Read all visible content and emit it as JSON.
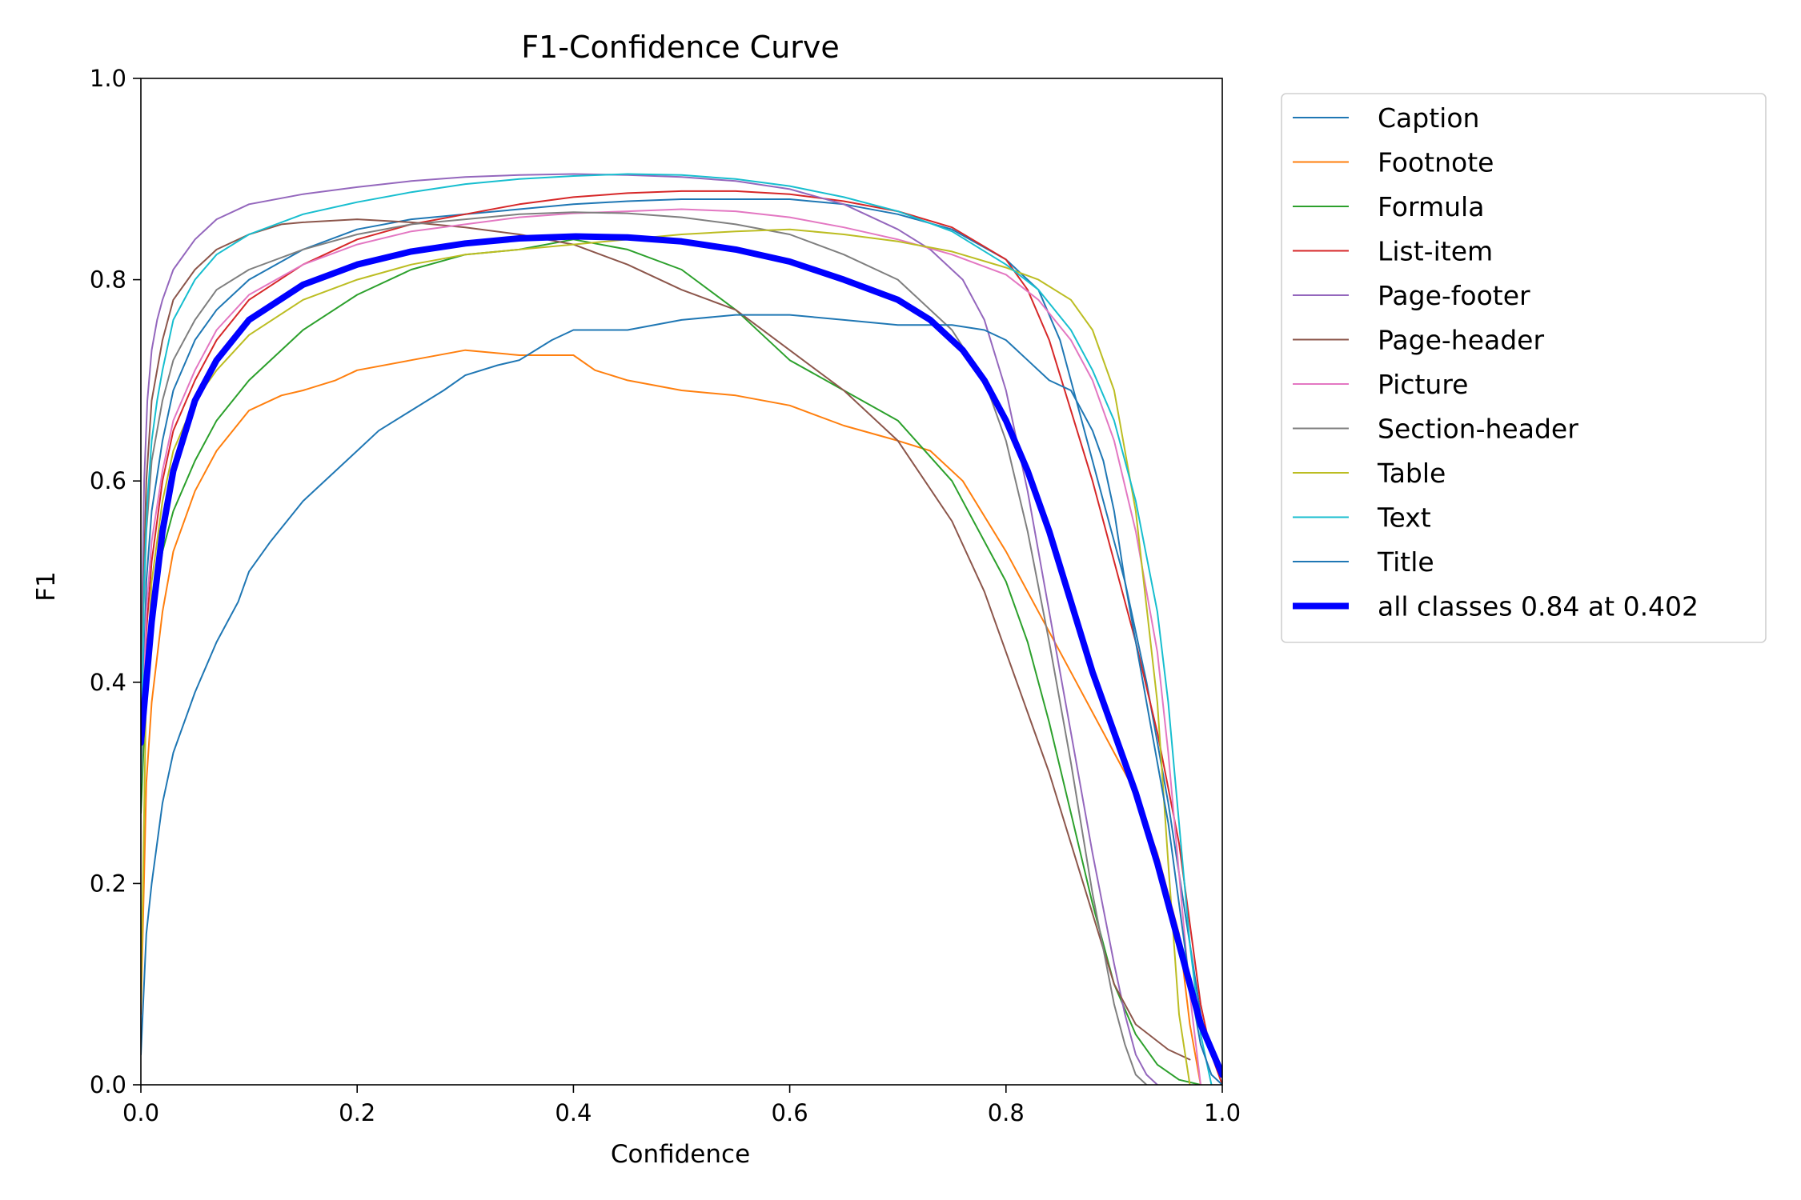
{
  "chart_data": {
    "type": "line",
    "title": "F1-Confidence Curve",
    "xlabel": "Confidence",
    "ylabel": "F1",
    "xlim": [
      0.0,
      1.0
    ],
    "ylim": [
      0.0,
      1.0
    ],
    "xticks": [
      "0.0",
      "0.2",
      "0.4",
      "0.6",
      "0.8",
      "1.0"
    ],
    "yticks": [
      "0.0",
      "0.2",
      "0.4",
      "0.6",
      "0.8",
      "1.0"
    ],
    "grid": false,
    "legend_position": "outside-right",
    "series": [
      {
        "name": "Caption",
        "color": "#1f77b4",
        "width": 2,
        "x": [
          0.0,
          0.005,
          0.01,
          0.02,
          0.03,
          0.05,
          0.07,
          0.1,
          0.15,
          0.2,
          0.25,
          0.3,
          0.35,
          0.4,
          0.45,
          0.5,
          0.55,
          0.6,
          0.65,
          0.7,
          0.75,
          0.8,
          0.83,
          0.85,
          0.87,
          0.89,
          0.91,
          0.93,
          0.95,
          0.97,
          0.98,
          0.99,
          1.0
        ],
        "y": [
          0.3,
          0.5,
          0.57,
          0.64,
          0.69,
          0.74,
          0.77,
          0.8,
          0.83,
          0.85,
          0.86,
          0.865,
          0.87,
          0.875,
          0.878,
          0.88,
          0.88,
          0.88,
          0.875,
          0.865,
          0.85,
          0.82,
          0.79,
          0.74,
          0.66,
          0.58,
          0.5,
          0.4,
          0.28,
          0.14,
          0.07,
          0.03,
          0.01
        ]
      },
      {
        "name": "Footnote",
        "color": "#ff7f0e",
        "width": 2,
        "x": [
          0.0,
          0.005,
          0.01,
          0.02,
          0.03,
          0.05,
          0.07,
          0.1,
          0.13,
          0.15,
          0.18,
          0.2,
          0.25,
          0.3,
          0.35,
          0.4,
          0.42,
          0.45,
          0.5,
          0.55,
          0.6,
          0.65,
          0.7,
          0.73,
          0.76,
          0.8,
          0.83,
          0.86,
          0.89,
          0.92,
          0.94,
          0.96,
          0.97,
          0.98
        ],
        "y": [
          0.07,
          0.3,
          0.38,
          0.47,
          0.53,
          0.59,
          0.63,
          0.67,
          0.685,
          0.69,
          0.7,
          0.71,
          0.72,
          0.73,
          0.725,
          0.725,
          0.71,
          0.7,
          0.69,
          0.685,
          0.675,
          0.655,
          0.64,
          0.63,
          0.6,
          0.53,
          0.47,
          0.41,
          0.35,
          0.29,
          0.23,
          0.15,
          0.06,
          0.0
        ]
      },
      {
        "name": "Formula",
        "color": "#2ca02c",
        "width": 2,
        "x": [
          0.0,
          0.005,
          0.01,
          0.02,
          0.03,
          0.05,
          0.07,
          0.1,
          0.15,
          0.2,
          0.25,
          0.3,
          0.35,
          0.4,
          0.45,
          0.5,
          0.55,
          0.6,
          0.65,
          0.7,
          0.75,
          0.8,
          0.82,
          0.84,
          0.86,
          0.88,
          0.9,
          0.92,
          0.94,
          0.96,
          0.98
        ],
        "y": [
          0.27,
          0.4,
          0.46,
          0.53,
          0.57,
          0.62,
          0.66,
          0.7,
          0.75,
          0.785,
          0.81,
          0.825,
          0.83,
          0.84,
          0.83,
          0.81,
          0.77,
          0.72,
          0.69,
          0.66,
          0.6,
          0.5,
          0.44,
          0.36,
          0.27,
          0.18,
          0.1,
          0.05,
          0.02,
          0.005,
          0.0
        ]
      },
      {
        "name": "List-item",
        "color": "#d62728",
        "width": 2,
        "x": [
          0.0,
          0.005,
          0.01,
          0.02,
          0.03,
          0.05,
          0.07,
          0.1,
          0.15,
          0.2,
          0.25,
          0.3,
          0.35,
          0.4,
          0.45,
          0.5,
          0.55,
          0.6,
          0.65,
          0.7,
          0.75,
          0.8,
          0.82,
          0.84,
          0.86,
          0.88,
          0.9,
          0.92,
          0.94,
          0.96,
          0.97,
          0.98,
          0.99,
          1.0
        ],
        "y": [
          0.3,
          0.45,
          0.52,
          0.6,
          0.65,
          0.7,
          0.74,
          0.78,
          0.815,
          0.84,
          0.855,
          0.865,
          0.875,
          0.882,
          0.886,
          0.888,
          0.888,
          0.885,
          0.878,
          0.868,
          0.852,
          0.82,
          0.79,
          0.74,
          0.67,
          0.6,
          0.52,
          0.44,
          0.35,
          0.24,
          0.16,
          0.08,
          0.03,
          0.0
        ]
      },
      {
        "name": "Page-footer",
        "color": "#9467bd",
        "width": 2,
        "x": [
          0.0,
          0.003,
          0.006,
          0.01,
          0.015,
          0.02,
          0.03,
          0.05,
          0.07,
          0.1,
          0.15,
          0.2,
          0.25,
          0.3,
          0.35,
          0.4,
          0.45,
          0.5,
          0.55,
          0.6,
          0.65,
          0.7,
          0.73,
          0.76,
          0.78,
          0.8,
          0.82,
          0.84,
          0.86,
          0.88,
          0.9,
          0.91,
          0.92,
          0.93,
          0.94
        ],
        "y": [
          0.4,
          0.6,
          0.68,
          0.73,
          0.76,
          0.78,
          0.81,
          0.84,
          0.86,
          0.875,
          0.885,
          0.892,
          0.898,
          0.902,
          0.904,
          0.905,
          0.904,
          0.902,
          0.898,
          0.89,
          0.875,
          0.85,
          0.83,
          0.8,
          0.76,
          0.69,
          0.59,
          0.47,
          0.35,
          0.23,
          0.12,
          0.07,
          0.03,
          0.01,
          0.0
        ]
      },
      {
        "name": "Page-header",
        "color": "#8c564b",
        "width": 2,
        "x": [
          0.0,
          0.005,
          0.01,
          0.02,
          0.03,
          0.05,
          0.07,
          0.1,
          0.13,
          0.15,
          0.2,
          0.25,
          0.3,
          0.35,
          0.4,
          0.45,
          0.5,
          0.55,
          0.6,
          0.65,
          0.7,
          0.75,
          0.78,
          0.8,
          0.82,
          0.84,
          0.86,
          0.88,
          0.9,
          0.92,
          0.95,
          0.97
        ],
        "y": [
          0.4,
          0.6,
          0.68,
          0.74,
          0.78,
          0.81,
          0.83,
          0.845,
          0.855,
          0.857,
          0.86,
          0.857,
          0.852,
          0.845,
          0.835,
          0.815,
          0.79,
          0.77,
          0.73,
          0.69,
          0.64,
          0.56,
          0.49,
          0.43,
          0.37,
          0.31,
          0.24,
          0.17,
          0.1,
          0.06,
          0.035,
          0.025
        ]
      },
      {
        "name": "Picture",
        "color": "#e377c2",
        "width": 2,
        "x": [
          0.0,
          0.005,
          0.01,
          0.02,
          0.03,
          0.05,
          0.07,
          0.1,
          0.15,
          0.2,
          0.25,
          0.3,
          0.35,
          0.4,
          0.45,
          0.5,
          0.55,
          0.6,
          0.65,
          0.7,
          0.75,
          0.8,
          0.83,
          0.86,
          0.88,
          0.9,
          0.92,
          0.94,
          0.95,
          0.96,
          0.97,
          0.98
        ],
        "y": [
          0.3,
          0.47,
          0.54,
          0.61,
          0.66,
          0.71,
          0.75,
          0.785,
          0.815,
          0.835,
          0.848,
          0.855,
          0.862,
          0.866,
          0.868,
          0.87,
          0.868,
          0.862,
          0.852,
          0.84,
          0.825,
          0.805,
          0.78,
          0.74,
          0.7,
          0.64,
          0.55,
          0.43,
          0.33,
          0.21,
          0.09,
          0.0
        ]
      },
      {
        "name": "Section-header",
        "color": "#7f7f7f",
        "width": 2,
        "x": [
          0.0,
          0.005,
          0.01,
          0.02,
          0.03,
          0.05,
          0.07,
          0.1,
          0.15,
          0.2,
          0.25,
          0.3,
          0.35,
          0.4,
          0.45,
          0.5,
          0.55,
          0.6,
          0.65,
          0.7,
          0.75,
          0.78,
          0.8,
          0.82,
          0.84,
          0.86,
          0.88,
          0.9,
          0.91,
          0.92,
          0.93
        ],
        "y": [
          0.4,
          0.55,
          0.62,
          0.68,
          0.72,
          0.76,
          0.79,
          0.81,
          0.83,
          0.845,
          0.855,
          0.86,
          0.865,
          0.867,
          0.866,
          0.862,
          0.855,
          0.845,
          0.825,
          0.8,
          0.75,
          0.7,
          0.64,
          0.55,
          0.44,
          0.32,
          0.19,
          0.08,
          0.04,
          0.01,
          0.0
        ]
      },
      {
        "name": "Table",
        "color": "#bcbd22",
        "width": 2,
        "x": [
          0.0,
          0.005,
          0.01,
          0.02,
          0.03,
          0.05,
          0.07,
          0.1,
          0.15,
          0.2,
          0.25,
          0.3,
          0.35,
          0.4,
          0.45,
          0.5,
          0.55,
          0.6,
          0.65,
          0.7,
          0.75,
          0.8,
          0.83,
          0.86,
          0.88,
          0.9,
          0.92,
          0.94,
          0.95,
          0.96,
          0.97
        ],
        "y": [
          0.08,
          0.4,
          0.5,
          0.58,
          0.63,
          0.68,
          0.71,
          0.745,
          0.78,
          0.8,
          0.815,
          0.825,
          0.83,
          0.835,
          0.84,
          0.845,
          0.848,
          0.85,
          0.845,
          0.838,
          0.828,
          0.812,
          0.8,
          0.78,
          0.75,
          0.69,
          0.57,
          0.38,
          0.22,
          0.07,
          0.0
        ]
      },
      {
        "name": "Text",
        "color": "#17becf",
        "width": 2,
        "x": [
          0.0,
          0.003,
          0.006,
          0.01,
          0.015,
          0.02,
          0.03,
          0.05,
          0.07,
          0.1,
          0.15,
          0.2,
          0.25,
          0.3,
          0.35,
          0.4,
          0.45,
          0.5,
          0.55,
          0.6,
          0.65,
          0.7,
          0.75,
          0.8,
          0.83,
          0.86,
          0.88,
          0.9,
          0.92,
          0.94,
          0.95,
          0.96,
          0.97,
          0.98,
          0.99
        ],
        "y": [
          0.3,
          0.5,
          0.58,
          0.64,
          0.68,
          0.71,
          0.76,
          0.8,
          0.825,
          0.845,
          0.865,
          0.877,
          0.887,
          0.895,
          0.9,
          0.903,
          0.905,
          0.904,
          0.9,
          0.893,
          0.882,
          0.868,
          0.848,
          0.815,
          0.79,
          0.75,
          0.71,
          0.66,
          0.58,
          0.47,
          0.38,
          0.26,
          0.14,
          0.05,
          0.0
        ]
      },
      {
        "name": "Title",
        "color": "#1f77b4",
        "width": 2,
        "x": [
          0.0,
          0.005,
          0.01,
          0.02,
          0.03,
          0.05,
          0.07,
          0.09,
          0.1,
          0.12,
          0.15,
          0.18,
          0.2,
          0.22,
          0.25,
          0.28,
          0.3,
          0.33,
          0.35,
          0.38,
          0.4,
          0.45,
          0.5,
          0.55,
          0.6,
          0.65,
          0.7,
          0.75,
          0.78,
          0.8,
          0.82,
          0.84,
          0.86,
          0.87,
          0.88,
          0.89,
          0.9,
          0.91,
          0.93,
          0.95,
          0.96,
          0.97,
          0.98,
          0.99,
          1.0
        ],
        "y": [
          0.03,
          0.15,
          0.2,
          0.28,
          0.33,
          0.39,
          0.44,
          0.48,
          0.51,
          0.54,
          0.58,
          0.61,
          0.63,
          0.65,
          0.67,
          0.69,
          0.705,
          0.715,
          0.72,
          0.74,
          0.75,
          0.75,
          0.76,
          0.765,
          0.765,
          0.76,
          0.755,
          0.755,
          0.75,
          0.74,
          0.72,
          0.7,
          0.69,
          0.67,
          0.65,
          0.62,
          0.57,
          0.5,
          0.38,
          0.26,
          0.18,
          0.1,
          0.04,
          0.01,
          0.0
        ]
      },
      {
        "name": "all classes 0.84 at 0.402",
        "color": "#0000ff",
        "width": 8,
        "x": [
          0.0,
          0.005,
          0.01,
          0.02,
          0.03,
          0.05,
          0.07,
          0.1,
          0.15,
          0.2,
          0.25,
          0.3,
          0.35,
          0.402,
          0.45,
          0.5,
          0.55,
          0.6,
          0.65,
          0.7,
          0.73,
          0.76,
          0.78,
          0.8,
          0.82,
          0.84,
          0.86,
          0.88,
          0.9,
          0.92,
          0.94,
          0.96,
          0.98,
          1.0
        ],
        "y": [
          0.34,
          0.4,
          0.46,
          0.55,
          0.61,
          0.68,
          0.72,
          0.76,
          0.795,
          0.815,
          0.828,
          0.836,
          0.841,
          0.843,
          0.842,
          0.838,
          0.83,
          0.818,
          0.8,
          0.78,
          0.76,
          0.73,
          0.7,
          0.66,
          0.61,
          0.55,
          0.48,
          0.41,
          0.35,
          0.29,
          0.22,
          0.14,
          0.06,
          0.01
        ]
      }
    ]
  }
}
